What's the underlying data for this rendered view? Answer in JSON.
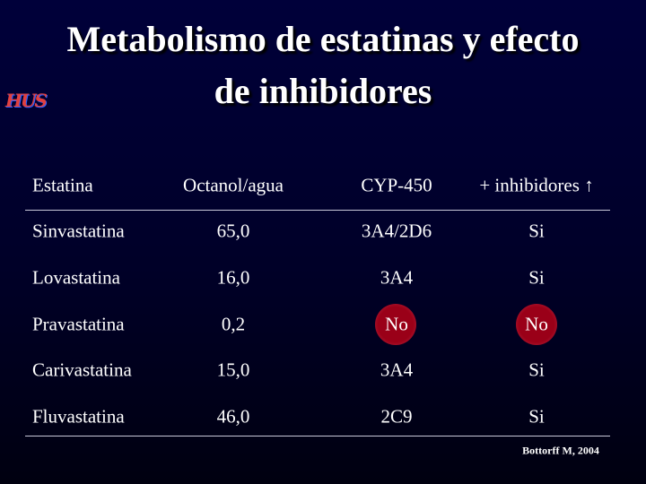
{
  "header": {
    "title_lines": [
      "Metabolismo de estatinas y efecto",
      "de inhibidores"
    ],
    "logo": "HUS"
  },
  "table": {
    "columns": [
      "Estatina",
      "Octanol/agua",
      "CYP-450",
      "+ inhibidores ↑"
    ],
    "rows": [
      [
        "Sinvastatina",
        "65,0",
        "3A4/2D6",
        "Si"
      ],
      [
        "Lovastatina",
        "16,0",
        "3A4",
        "Si"
      ],
      [
        "Pravastatina",
        "0,2",
        "No",
        "No"
      ],
      [
        "Carivastatina",
        "15,0",
        "3A4",
        "Si"
      ],
      [
        "Fluvastatina",
        "46,0",
        "2C9",
        "Si"
      ]
    ]
  },
  "footer": {
    "source": "Bottorff M, 2004"
  }
}
